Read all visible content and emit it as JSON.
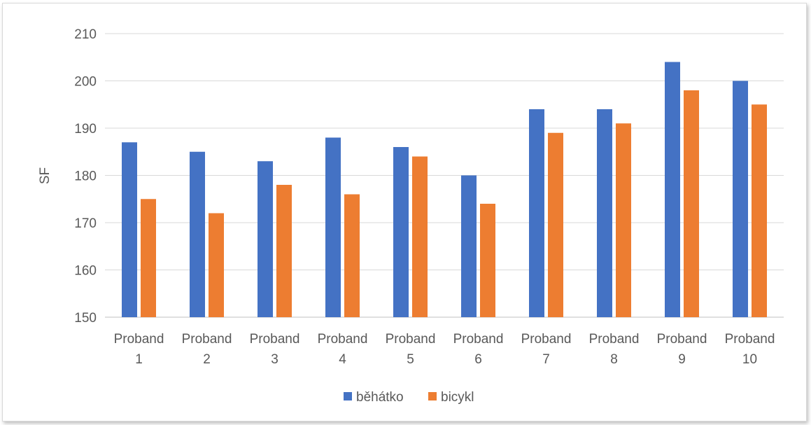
{
  "chart_data": {
    "type": "bar",
    "title": "",
    "xlabel": "",
    "ylabel": "SF",
    "ylim": [
      150,
      210
    ],
    "y_ticks": [
      150,
      160,
      170,
      180,
      190,
      200,
      210
    ],
    "grid": true,
    "legend_position": "bottom",
    "categories": [
      [
        "Proband",
        "1"
      ],
      [
        "Proband",
        "2"
      ],
      [
        "Proband",
        "3"
      ],
      [
        "Proband",
        "4"
      ],
      [
        "Proband",
        "5"
      ],
      [
        "Proband",
        "6"
      ],
      [
        "Proband",
        "7"
      ],
      [
        "Proband",
        "8"
      ],
      [
        "Proband",
        "9"
      ],
      [
        "Proband",
        "10"
      ]
    ],
    "series": [
      {
        "name": "běhátko",
        "color": "#4472c4",
        "values": [
          187,
          185,
          183,
          188,
          186,
          180,
          194,
          194,
          204,
          200
        ]
      },
      {
        "name": "bicykl",
        "color": "#ed7d31",
        "values": [
          175,
          172,
          178,
          176,
          184,
          174,
          189,
          191,
          198,
          195
        ]
      }
    ]
  }
}
